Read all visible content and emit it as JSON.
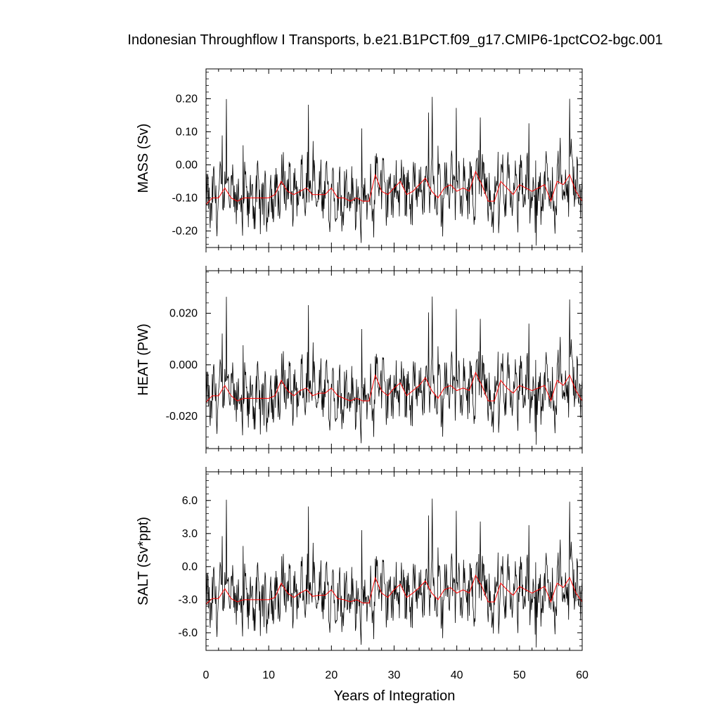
{
  "chart_data": {
    "type": "line",
    "title": "Indonesian Throughflow I Transports, b.e21.B1PCT.f09_g17.CMIP6-1pctCO2-bgc.001",
    "xlabel": "Years of Integration",
    "xlim": [
      0,
      60
    ],
    "x_ticks": [
      "0",
      "10",
      "20",
      "30",
      "40",
      "50",
      "60"
    ],
    "panels": [
      {
        "ylabel": "MASS (Sv)",
        "ylim": [
          -0.25,
          0.29
        ],
        "y_ticks": [
          -0.2,
          -0.1,
          0.0,
          0.1,
          0.2
        ],
        "y_tick_labels": [
          "-0.20",
          "-0.10",
          "0.00",
          "0.10",
          "0.20"
        ],
        "annual_mean": [
          -0.12,
          -0.1,
          -0.1,
          -0.07,
          -0.1,
          -0.11,
          -0.1,
          -0.1,
          -0.1,
          -0.1,
          -0.1,
          -0.09,
          -0.05,
          -0.08,
          -0.09,
          -0.08,
          -0.07,
          -0.09,
          -0.09,
          -0.09,
          -0.07,
          -0.1,
          -0.1,
          -0.11,
          -0.1,
          -0.11,
          -0.11,
          -0.03,
          -0.08,
          -0.09,
          -0.07,
          -0.05,
          -0.09,
          -0.08,
          -0.06,
          -0.04,
          -0.08,
          -0.1,
          -0.07,
          -0.06,
          -0.08,
          -0.07,
          -0.08,
          -0.02,
          -0.06,
          -0.11,
          -0.11,
          -0.05,
          -0.07,
          -0.09,
          -0.06,
          -0.07,
          -0.08,
          -0.07,
          -0.06,
          -0.11,
          -0.05,
          -0.06,
          -0.03,
          -0.08,
          -0.11
        ]
      },
      {
        "ylabel": "HEAT (PW)",
        "ylim": [
          -0.0325,
          0.0365
        ],
        "y_ticks": [
          -0.02,
          0.0,
          0.02
        ],
        "y_tick_labels": [
          "-0.020",
          "0.000",
          "0.020"
        ],
        "annual_mean": [
          -0.0145,
          -0.012,
          -0.012,
          -0.008,
          -0.012,
          -0.014,
          -0.013,
          -0.013,
          -0.013,
          -0.013,
          -0.013,
          -0.012,
          -0.006,
          -0.01,
          -0.012,
          -0.01,
          -0.009,
          -0.012,
          -0.011,
          -0.011,
          -0.009,
          -0.012,
          -0.013,
          -0.014,
          -0.013,
          -0.014,
          -0.014,
          -0.004,
          -0.01,
          -0.012,
          -0.009,
          -0.007,
          -0.012,
          -0.01,
          -0.008,
          -0.005,
          -0.01,
          -0.013,
          -0.009,
          -0.008,
          -0.01,
          -0.009,
          -0.01,
          -0.003,
          -0.008,
          -0.014,
          -0.014,
          -0.006,
          -0.009,
          -0.011,
          -0.008,
          -0.009,
          -0.01,
          -0.009,
          -0.008,
          -0.014,
          -0.006,
          -0.008,
          -0.004,
          -0.01,
          -0.014
        ]
      },
      {
        "ylabel": "SALT (Sv*ppt)",
        "ylim": [
          -7.6,
          8.6
        ],
        "y_ticks": [
          -6.0,
          -3.0,
          0.0,
          3.0,
          6.0
        ],
        "y_tick_labels": [
          "-6.0",
          "-3.0",
          "0.0",
          "3.0",
          "6.0"
        ],
        "annual_mean": [
          -3.4,
          -2.9,
          -2.9,
          -2.0,
          -2.9,
          -3.2,
          -3.0,
          -3.0,
          -3.0,
          -3.0,
          -3.0,
          -2.8,
          -1.5,
          -2.4,
          -2.8,
          -2.4,
          -2.1,
          -2.7,
          -2.6,
          -2.6,
          -2.1,
          -2.9,
          -3.0,
          -3.2,
          -3.0,
          -3.3,
          -3.3,
          -1.0,
          -2.4,
          -2.8,
          -2.1,
          -1.6,
          -2.8,
          -2.4,
          -1.9,
          -1.3,
          -2.4,
          -3.0,
          -2.1,
          -1.9,
          -2.4,
          -2.1,
          -2.4,
          -0.8,
          -1.8,
          -3.2,
          -3.2,
          -1.5,
          -2.1,
          -2.6,
          -1.8,
          -2.1,
          -2.4,
          -2.1,
          -1.8,
          -3.2,
          -1.5,
          -1.9,
          -1.0,
          -2.4,
          -3.2
        ]
      }
    ],
    "series_colors": {
      "monthly": "#000000",
      "annual_mean": "#ff0000"
    }
  }
}
